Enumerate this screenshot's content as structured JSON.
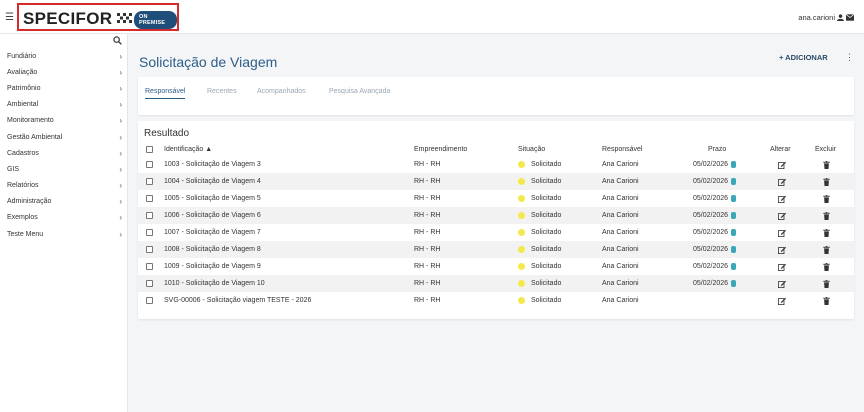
{
  "topbar": {
    "logo": "SPECIFOR",
    "badge": "ON PREMISE",
    "user": "ana.carioni"
  },
  "sidebar": {
    "items": [
      {
        "label": "Fundiário"
      },
      {
        "label": "Avaliação"
      },
      {
        "label": "Patrimônio"
      },
      {
        "label": "Ambiental"
      },
      {
        "label": "Monitoramento"
      },
      {
        "label": "Gestão Ambiental"
      },
      {
        "label": "Cadastros"
      },
      {
        "label": "GIS"
      },
      {
        "label": "Relatórios"
      },
      {
        "label": "Administração"
      },
      {
        "label": "Exemplos"
      },
      {
        "label": "Teste Menu"
      }
    ]
  },
  "page": {
    "title": "Solicitação de Viagem",
    "add_label": "+ ADICIONAR"
  },
  "tabs": [
    {
      "label": "Responsável",
      "active": true
    },
    {
      "label": "Recentes",
      "active": false
    },
    {
      "label": "Acompanhados",
      "active": false
    },
    {
      "label": "Pesquisa Avançada",
      "active": false
    }
  ],
  "result": {
    "title": "Resultado",
    "columns": {
      "id": "Identificação ▲",
      "emp": "Empreendimento",
      "sit": "Situação",
      "resp": "Responsável",
      "prazo": "Prazo",
      "alterar": "Alterar",
      "excluir": "Excluir"
    },
    "rows": [
      {
        "id": "1003 - Solicitação de Viagem 3",
        "emp": "RH - RH",
        "sit": "Solicitado",
        "resp": "Ana Carioni",
        "prazo": "05/02/2026"
      },
      {
        "id": "1004 - Solicitação de Viagem 4",
        "emp": "RH - RH",
        "sit": "Solicitado",
        "resp": "Ana Carioni",
        "prazo": "05/02/2026"
      },
      {
        "id": "1005 - Solicitação de Viagem 5",
        "emp": "RH - RH",
        "sit": "Solicitado",
        "resp": "Ana Carioni",
        "prazo": "05/02/2026"
      },
      {
        "id": "1006 - Solicitação de Viagem 6",
        "emp": "RH - RH",
        "sit": "Solicitado",
        "resp": "Ana Carioni",
        "prazo": "05/02/2026"
      },
      {
        "id": "1007 - Solicitação de Viagem 7",
        "emp": "RH - RH",
        "sit": "Solicitado",
        "resp": "Ana Carioni",
        "prazo": "05/02/2026"
      },
      {
        "id": "1008 - Solicitação de Viagem 8",
        "emp": "RH - RH",
        "sit": "Solicitado",
        "resp": "Ana Carioni",
        "prazo": "05/02/2026"
      },
      {
        "id": "1009 - Solicitação de Viagem 9",
        "emp": "RH - RH",
        "sit": "Solicitado",
        "resp": "Ana Carioni",
        "prazo": "05/02/2026"
      },
      {
        "id": "1010 - Solicitação de Viagem 10",
        "emp": "RH - RH",
        "sit": "Solicitado",
        "resp": "Ana Carioni",
        "prazo": "05/02/2026"
      },
      {
        "id": "SVG-00006 - Solicitação viagem TESTE - 2026",
        "emp": "RH - RH",
        "sit": "Solicitado",
        "resp": "Ana Carioni",
        "prazo": ""
      }
    ]
  },
  "colors": {
    "accent": "#2c5d87",
    "logo_border": "#d62b2b",
    "badge": "#1f4e7a",
    "status_dot": "#f4e94a",
    "info_icon": "#3aa7b8"
  }
}
